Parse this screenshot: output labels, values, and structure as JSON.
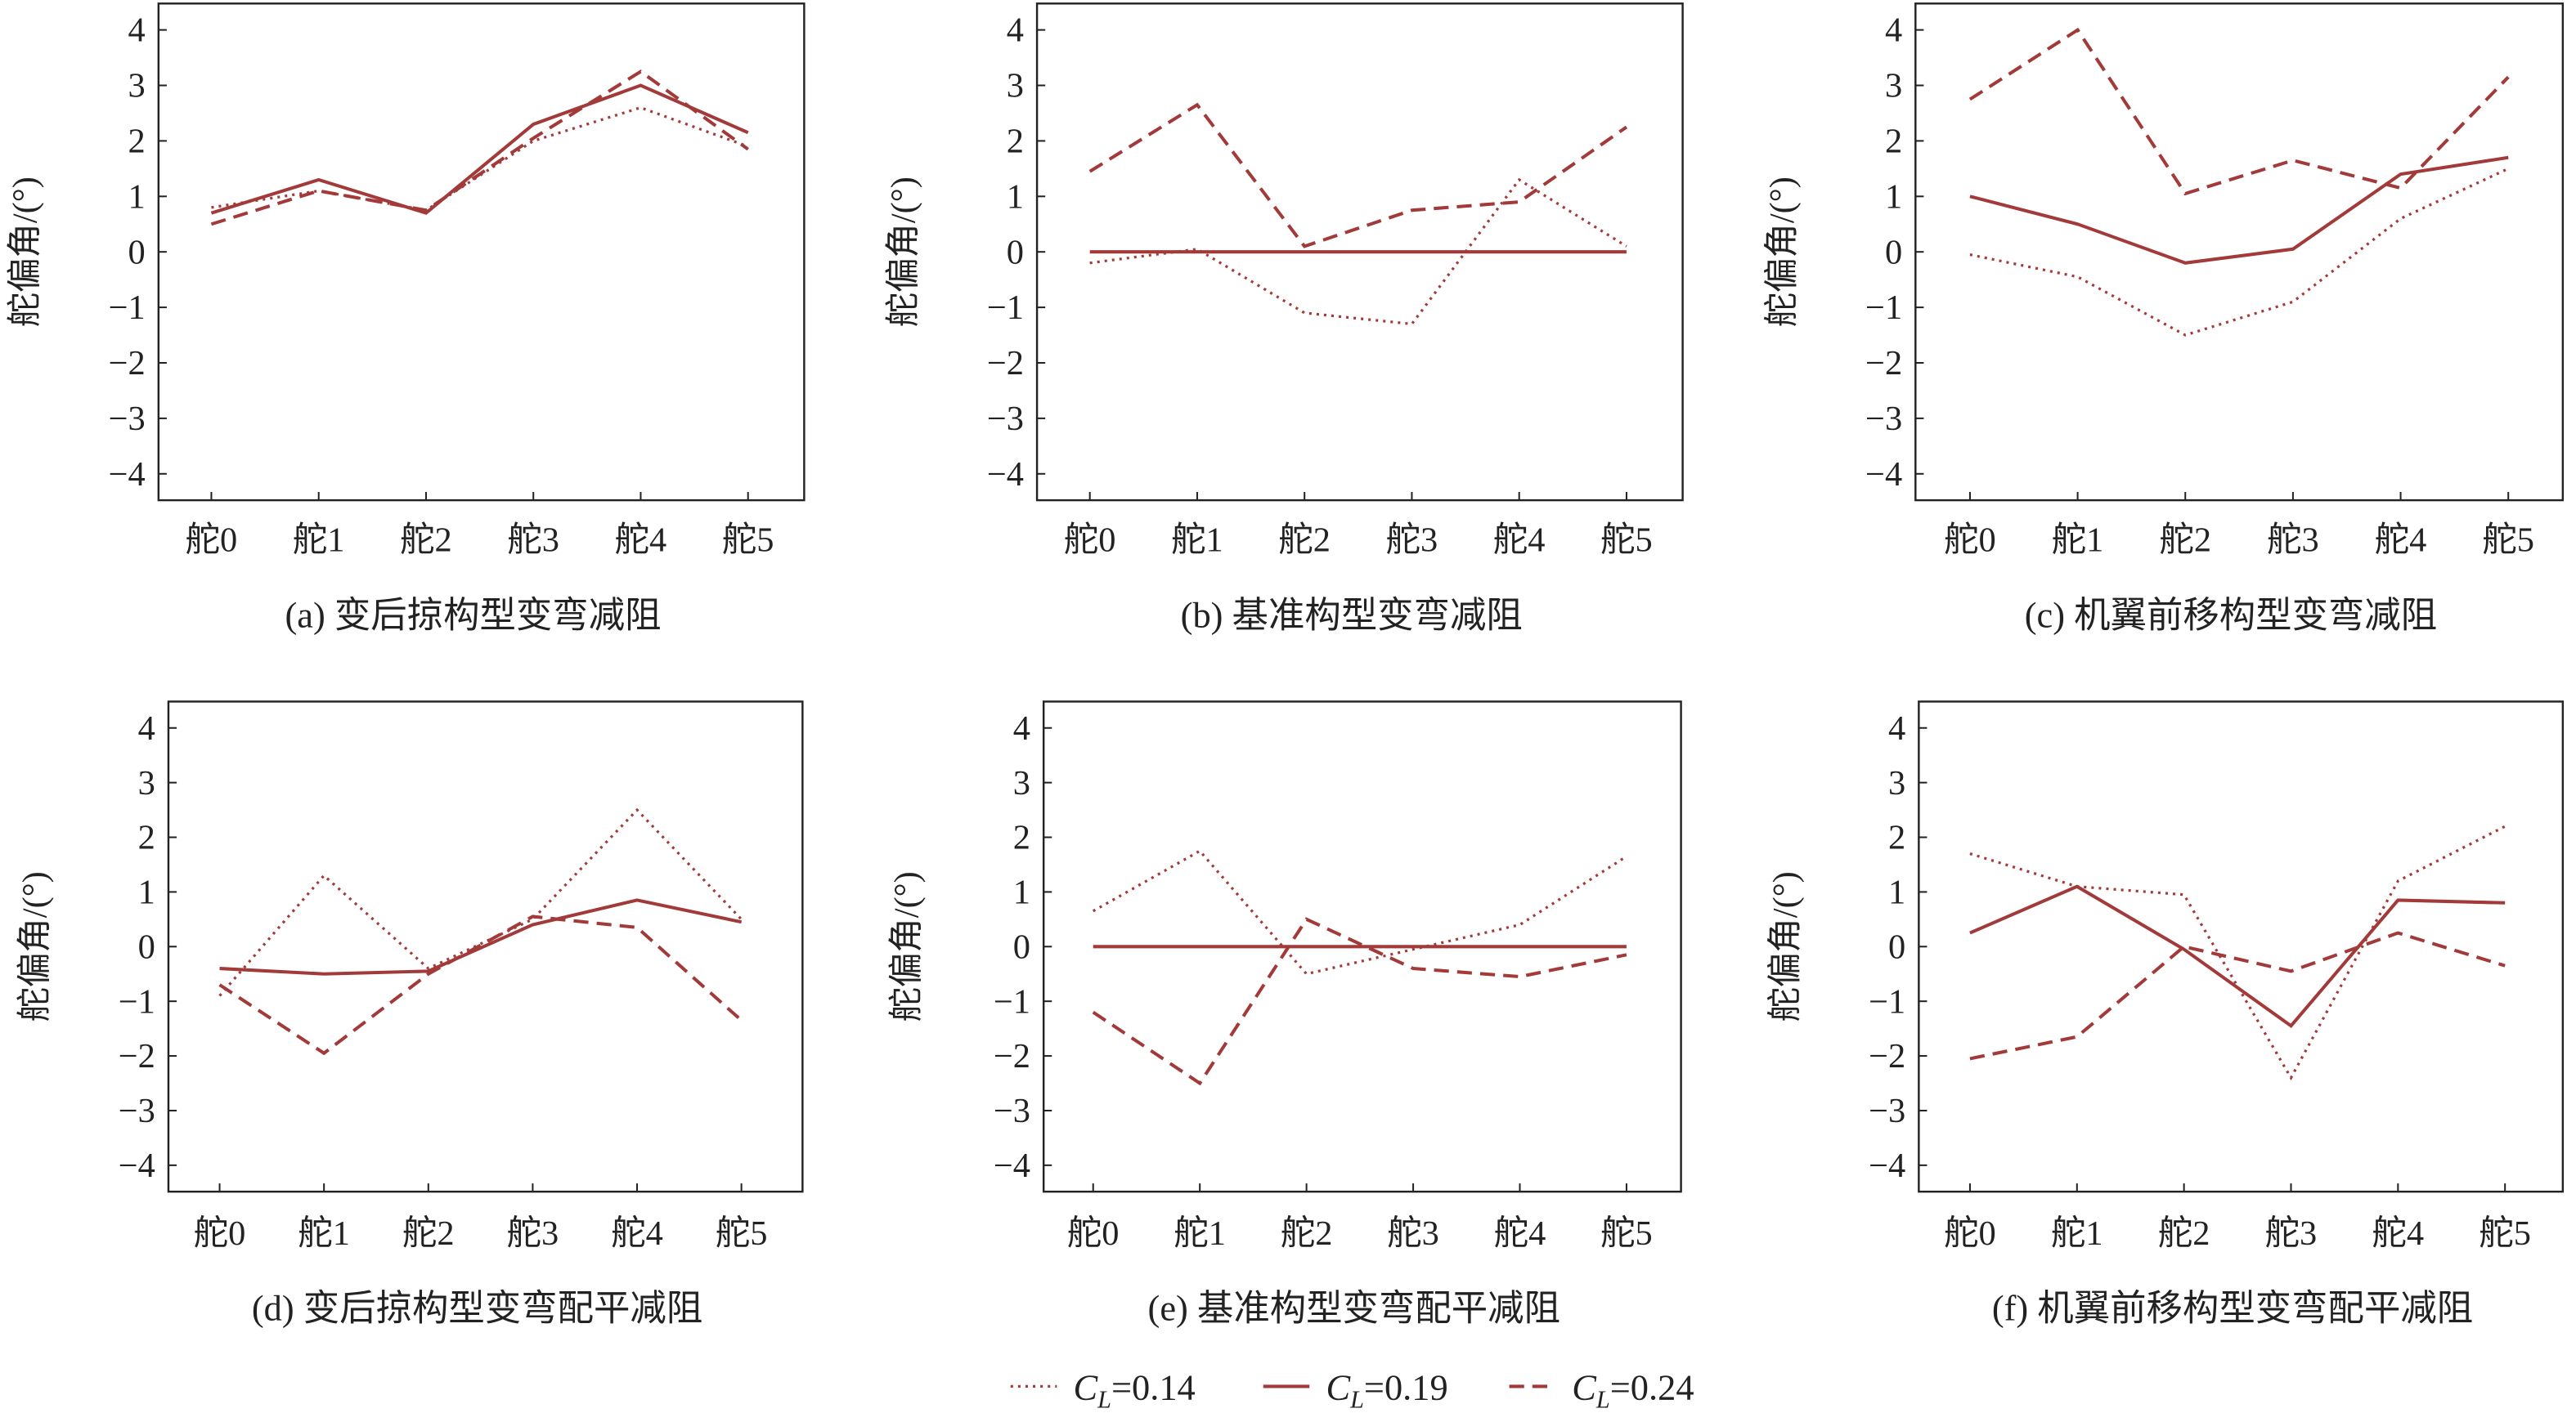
{
  "color": "#a33a3a",
  "chart_data": [
    {
      "type": "line",
      "title": "(a) 变后掠构型变弯减阻",
      "ylabel": "舵偏角/(°)",
      "categories": [
        "舵0",
        "舵1",
        "舵2",
        "舵3",
        "舵4",
        "舵5"
      ],
      "ylim": [
        -4,
        4
      ],
      "yticks": [
        "4",
        "3",
        "2",
        "1",
        "0",
        "−1",
        "−2",
        "−3",
        "−4"
      ],
      "series": [
        {
          "name": "C_L=0.14",
          "style": "dotted",
          "values": [
            0.8,
            1.1,
            0.75,
            2.0,
            2.6,
            1.9
          ]
        },
        {
          "name": "C_L=0.19",
          "style": "solid",
          "values": [
            0.7,
            1.3,
            0.7,
            2.3,
            3.0,
            2.15
          ]
        },
        {
          "name": "C_L=0.24",
          "style": "dashed",
          "values": [
            0.5,
            1.1,
            0.75,
            2.05,
            3.25,
            1.85
          ]
        }
      ]
    },
    {
      "type": "line",
      "title": "(b) 基准构型变弯减阻",
      "ylabel": "舵偏角/(°)",
      "categories": [
        "舵0",
        "舵1",
        "舵2",
        "舵3",
        "舵4",
        "舵5"
      ],
      "ylim": [
        -4,
        4
      ],
      "yticks": [
        "4",
        "3",
        "2",
        "1",
        "0",
        "−1",
        "−2",
        "−3",
        "−4"
      ],
      "series": [
        {
          "name": "C_L=0.14",
          "style": "dotted",
          "values": [
            -0.2,
            0.05,
            -1.1,
            -1.3,
            1.3,
            0.1
          ]
        },
        {
          "name": "C_L=0.19",
          "style": "solid",
          "values": [
            0,
            0,
            0,
            0,
            0,
            0
          ]
        },
        {
          "name": "C_L=0.24",
          "style": "dashed",
          "values": [
            1.45,
            2.65,
            0.1,
            0.75,
            0.9,
            2.25
          ]
        }
      ]
    },
    {
      "type": "line",
      "title": "(c) 机翼前移构型变弯减阻",
      "ylabel": "舵偏角/(°)",
      "categories": [
        "舵0",
        "舵1",
        "舵2",
        "舵3",
        "舵4",
        "舵5"
      ],
      "ylim": [
        -4,
        4
      ],
      "yticks": [
        "4",
        "3",
        "2",
        "1",
        "0",
        "−1",
        "−2",
        "−3",
        "−4"
      ],
      "series": [
        {
          "name": "C_L=0.14",
          "style": "dotted",
          "values": [
            -0.05,
            -0.45,
            -1.5,
            -0.9,
            0.6,
            1.5
          ]
        },
        {
          "name": "C_L=0.19",
          "style": "solid",
          "values": [
            1.0,
            0.5,
            -0.2,
            0.05,
            1.4,
            1.7
          ]
        },
        {
          "name": "C_L=0.24",
          "style": "dashed",
          "values": [
            2.75,
            4.0,
            1.05,
            1.65,
            1.15,
            3.15
          ]
        }
      ]
    },
    {
      "type": "line",
      "title": "(d) 变后掠构型变弯配平减阻",
      "ylabel": "舵偏角/(°)",
      "categories": [
        "舵0",
        "舵1",
        "舵2",
        "舵3",
        "舵4",
        "舵5"
      ],
      "ylim": [
        -4,
        4
      ],
      "yticks": [
        "4",
        "3",
        "2",
        "1",
        "0",
        "−1",
        "−2",
        "−3",
        "−4"
      ],
      "series": [
        {
          "name": "C_L=0.14",
          "style": "dotted",
          "values": [
            -0.9,
            1.3,
            -0.4,
            0.5,
            2.5,
            0.5
          ]
        },
        {
          "name": "C_L=0.19",
          "style": "solid",
          "values": [
            -0.4,
            -0.5,
            -0.45,
            0.4,
            0.85,
            0.45
          ]
        },
        {
          "name": "C_L=0.24",
          "style": "dashed",
          "values": [
            -0.7,
            -1.95,
            -0.5,
            0.55,
            0.35,
            -1.35
          ]
        }
      ]
    },
    {
      "type": "line",
      "title": "(e) 基准构型变弯配平减阻",
      "ylabel": "舵偏角/(°)",
      "categories": [
        "舵0",
        "舵1",
        "舵2",
        "舵3",
        "舵4",
        "舵5"
      ],
      "ylim": [
        -4,
        4
      ],
      "yticks": [
        "4",
        "3",
        "2",
        "1",
        "0",
        "−1",
        "−2",
        "−3",
        "−4"
      ],
      "series": [
        {
          "name": "C_L=0.14",
          "style": "dotted",
          "values": [
            0.65,
            1.75,
            -0.5,
            -0.05,
            0.4,
            1.65
          ]
        },
        {
          "name": "C_L=0.19",
          "style": "solid",
          "values": [
            0,
            0,
            0,
            0,
            0,
            0
          ]
        },
        {
          "name": "C_L=0.24",
          "style": "dashed",
          "values": [
            -1.2,
            -2.5,
            0.5,
            -0.4,
            -0.55,
            -0.15
          ]
        }
      ]
    },
    {
      "type": "line",
      "title": "(f) 机翼前移构型变弯配平减阻",
      "ylabel": "舵偏角/(°)",
      "categories": [
        "舵0",
        "舵1",
        "舵2",
        "舵3",
        "舵4",
        "舵5"
      ],
      "ylim": [
        -4,
        4
      ],
      "yticks": [
        "4",
        "3",
        "2",
        "1",
        "0",
        "−1",
        "−2",
        "−3",
        "−4"
      ],
      "series": [
        {
          "name": "C_L=0.14",
          "style": "dotted",
          "values": [
            1.7,
            1.1,
            0.95,
            -2.4,
            1.2,
            2.2
          ]
        },
        {
          "name": "C_L=0.19",
          "style": "solid",
          "values": [
            0.25,
            1.1,
            -0.05,
            -1.45,
            0.85,
            0.8
          ]
        },
        {
          "name": "C_L=0.24",
          "style": "dashed",
          "values": [
            -2.05,
            -1.65,
            0.0,
            -0.45,
            0.25,
            -0.35
          ]
        }
      ]
    }
  ],
  "legend": {
    "placement": "bottom-center",
    "items": [
      {
        "symbol": "C",
        "subscript": "L",
        "value": "=0.14",
        "style": "dotted"
      },
      {
        "symbol": "C",
        "subscript": "L",
        "value": "=0.19",
        "style": "solid"
      },
      {
        "symbol": "C",
        "subscript": "L",
        "value": "=0.24",
        "style": "dashed"
      }
    ]
  }
}
